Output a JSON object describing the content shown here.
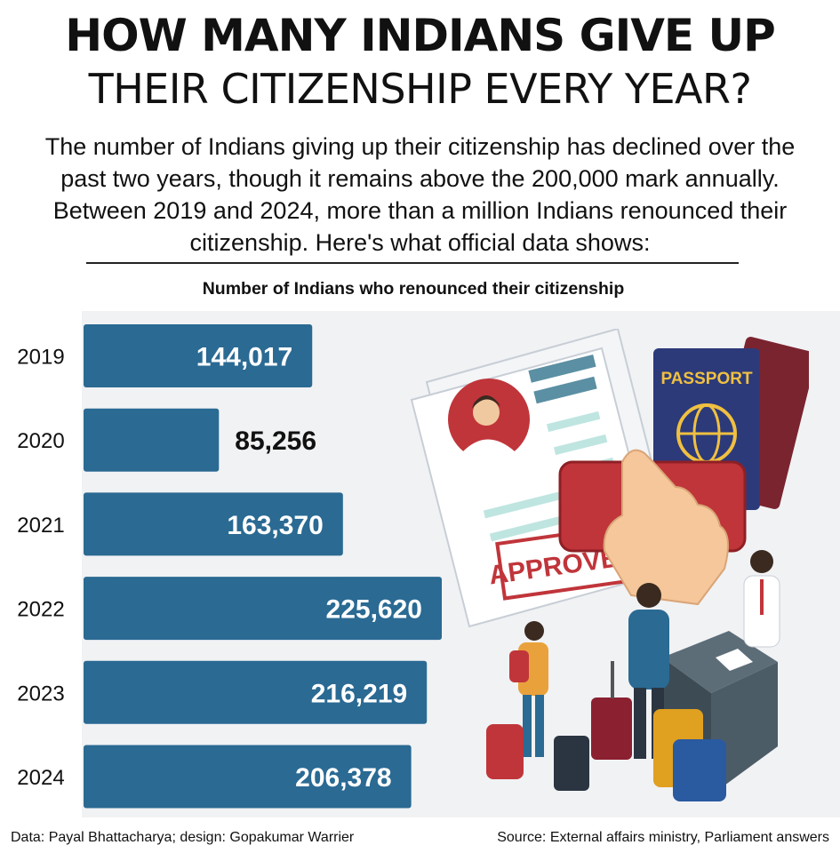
{
  "headline": {
    "line1": "HOW MANY INDIANS GIVE UP",
    "line2": "THEIR CITIZENSHIP EVERY YEAR?"
  },
  "description": "The number of Indians giving up their citizenship has declined over the past two years, though it remains above the 200,000 mark annually. Between 2019 and 2024, more than a million Indians renounced their citizenship. Here's what official data shows:",
  "illustration": {
    "passport_label": "PASSPORT",
    "stamp_label": "APPROVED"
  },
  "footer": {
    "credit": "Data: Payal Bhattacharya; design: Gopakumar Warrier",
    "source": "Source: External affairs ministry, Parliament answers"
  },
  "colors": {
    "bar": "#2a6a93",
    "label_inside": "#ffffff",
    "label_outside": "#111111",
    "panel_bg": "#f1f2f4"
  },
  "chart_data": {
    "type": "bar",
    "orientation": "horizontal",
    "title": "Number of Indians who renounced their citizenship",
    "categories": [
      "2019",
      "2020",
      "2021",
      "2022",
      "2023",
      "2024"
    ],
    "values": [
      144017,
      85256,
      163370,
      225620,
      216219,
      206378
    ],
    "value_labels": [
      "144,017",
      "85,256",
      "163,370",
      "225,620",
      "216,219",
      "206,378"
    ],
    "xlim": [
      0,
      225620
    ]
  }
}
